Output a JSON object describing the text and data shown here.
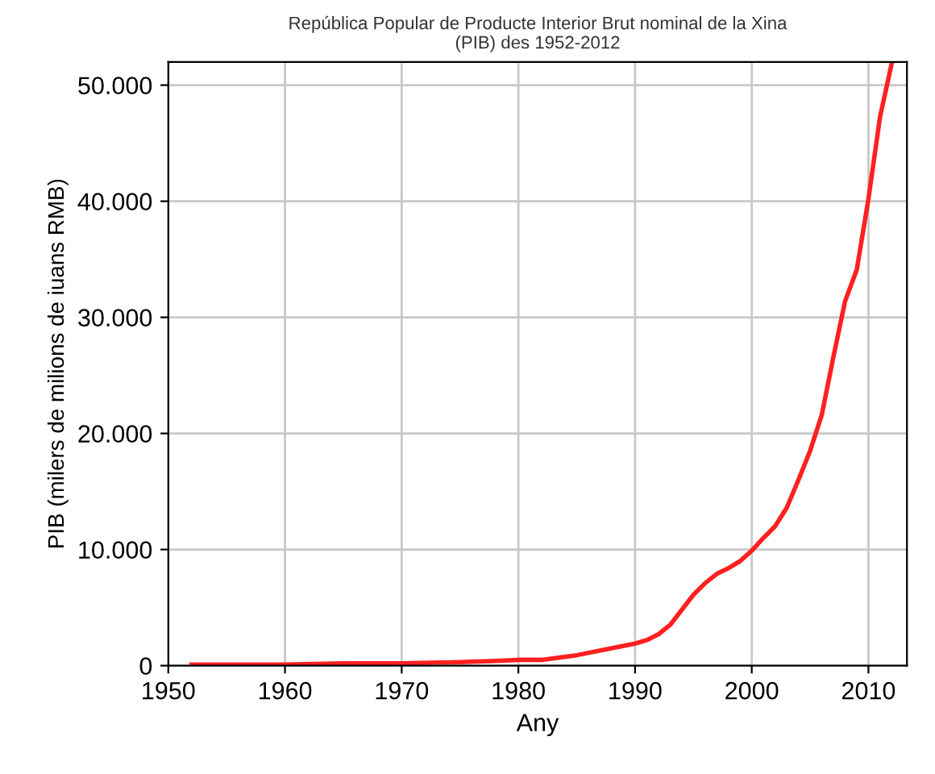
{
  "chart_data": {
    "type": "line",
    "title": "República Popular de Producte Interior Brut nominal de la Xina\n(PIB) des 1952-2012",
    "xlabel": "Any",
    "ylabel": "PIB (milers de milions de iuans RMB)",
    "x": [
      1952,
      1955,
      1960,
      1965,
      1970,
      1975,
      1978,
      1980,
      1982,
      1985,
      1988,
      1990,
      1991,
      1992,
      1993,
      1994,
      1995,
      1996,
      1997,
      1998,
      1999,
      2000,
      2001,
      2002,
      2003,
      2004,
      2005,
      2006,
      2007,
      2008,
      2009,
      2010,
      2011,
      2012
    ],
    "series": [
      {
        "color": "#ff2020",
        "values": [
          100,
          100,
          100,
          200,
          200,
          300,
          400,
          500,
          500,
          900,
          1500,
          1900,
          2200,
          2700,
          3500,
          4800,
          6100,
          7100,
          7900,
          8400,
          9000,
          9900,
          11000,
          12000,
          13600,
          16000,
          18500,
          21600,
          26600,
          31400,
          34100,
          40200,
          47300,
          51900
        ]
      }
    ],
    "xlim": [
      1950,
      2013.3
    ],
    "ylim": [
      0,
      52000
    ],
    "xticks": [
      1950,
      1960,
      1970,
      1980,
      1990,
      2000,
      2010
    ],
    "yticks": [
      {
        "value": 0,
        "label": "0"
      },
      {
        "value": 10000,
        "label": "10.000"
      },
      {
        "value": 20000,
        "label": "20.000"
      },
      {
        "value": 30000,
        "label": "30.000"
      },
      {
        "value": 40000,
        "label": "40.000"
      },
      {
        "value": 50000,
        "label": "50.000"
      }
    ],
    "grid": true,
    "marker": "none",
    "line_style": "solid"
  }
}
